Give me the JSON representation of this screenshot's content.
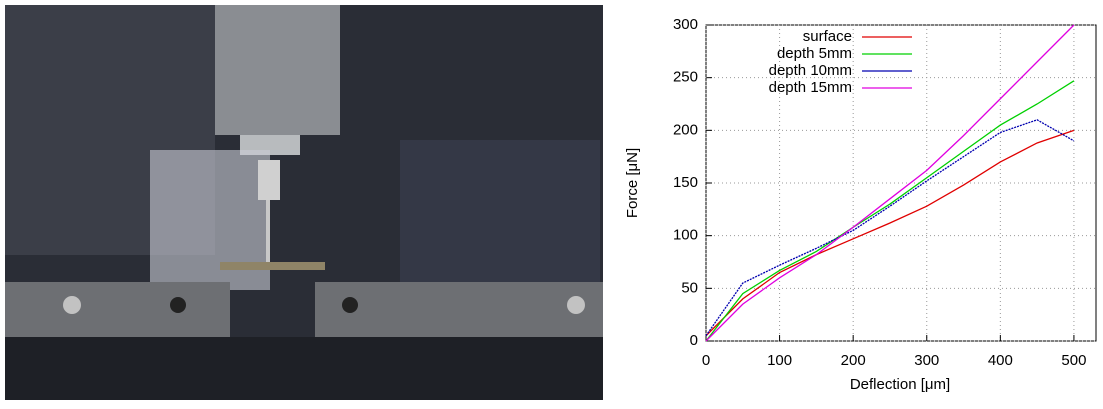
{
  "chart_data": {
    "type": "line",
    "x_label": "Deflection [μm]",
    "y_label": "Force [μN]",
    "x": [
      0,
      50,
      100,
      150,
      200,
      250,
      300,
      350,
      400,
      450,
      500
    ],
    "series": [
      {
        "name": "surface",
        "color": "#e00000",
        "values": [
          5,
          40,
          65,
          82,
          97,
          112,
          128,
          148,
          170,
          188,
          200
        ]
      },
      {
        "name": "depth 5mm",
        "color": "#00d000",
        "values": [
          0,
          45,
          67,
          85,
          108,
          130,
          155,
          180,
          205,
          225,
          247
        ]
      },
      {
        "name": "depth 10mm",
        "color": "#0000b0",
        "values": [
          5,
          55,
          72,
          88,
          105,
          128,
          152,
          175,
          198,
          210,
          190
        ]
      },
      {
        "name": "depth 15mm",
        "color": "#e000e0",
        "values": [
          0,
          35,
          60,
          82,
          108,
          135,
          162,
          195,
          230,
          265,
          300
        ]
      }
    ],
    "xlim": [
      0,
      530
    ],
    "ylim": [
      0,
      300
    ],
    "xticks": [
      0,
      100,
      200,
      300,
      400,
      500
    ],
    "yticks": [
      0,
      50,
      100,
      150,
      200,
      250,
      300
    ],
    "grid": true,
    "legend": "upper left"
  }
}
